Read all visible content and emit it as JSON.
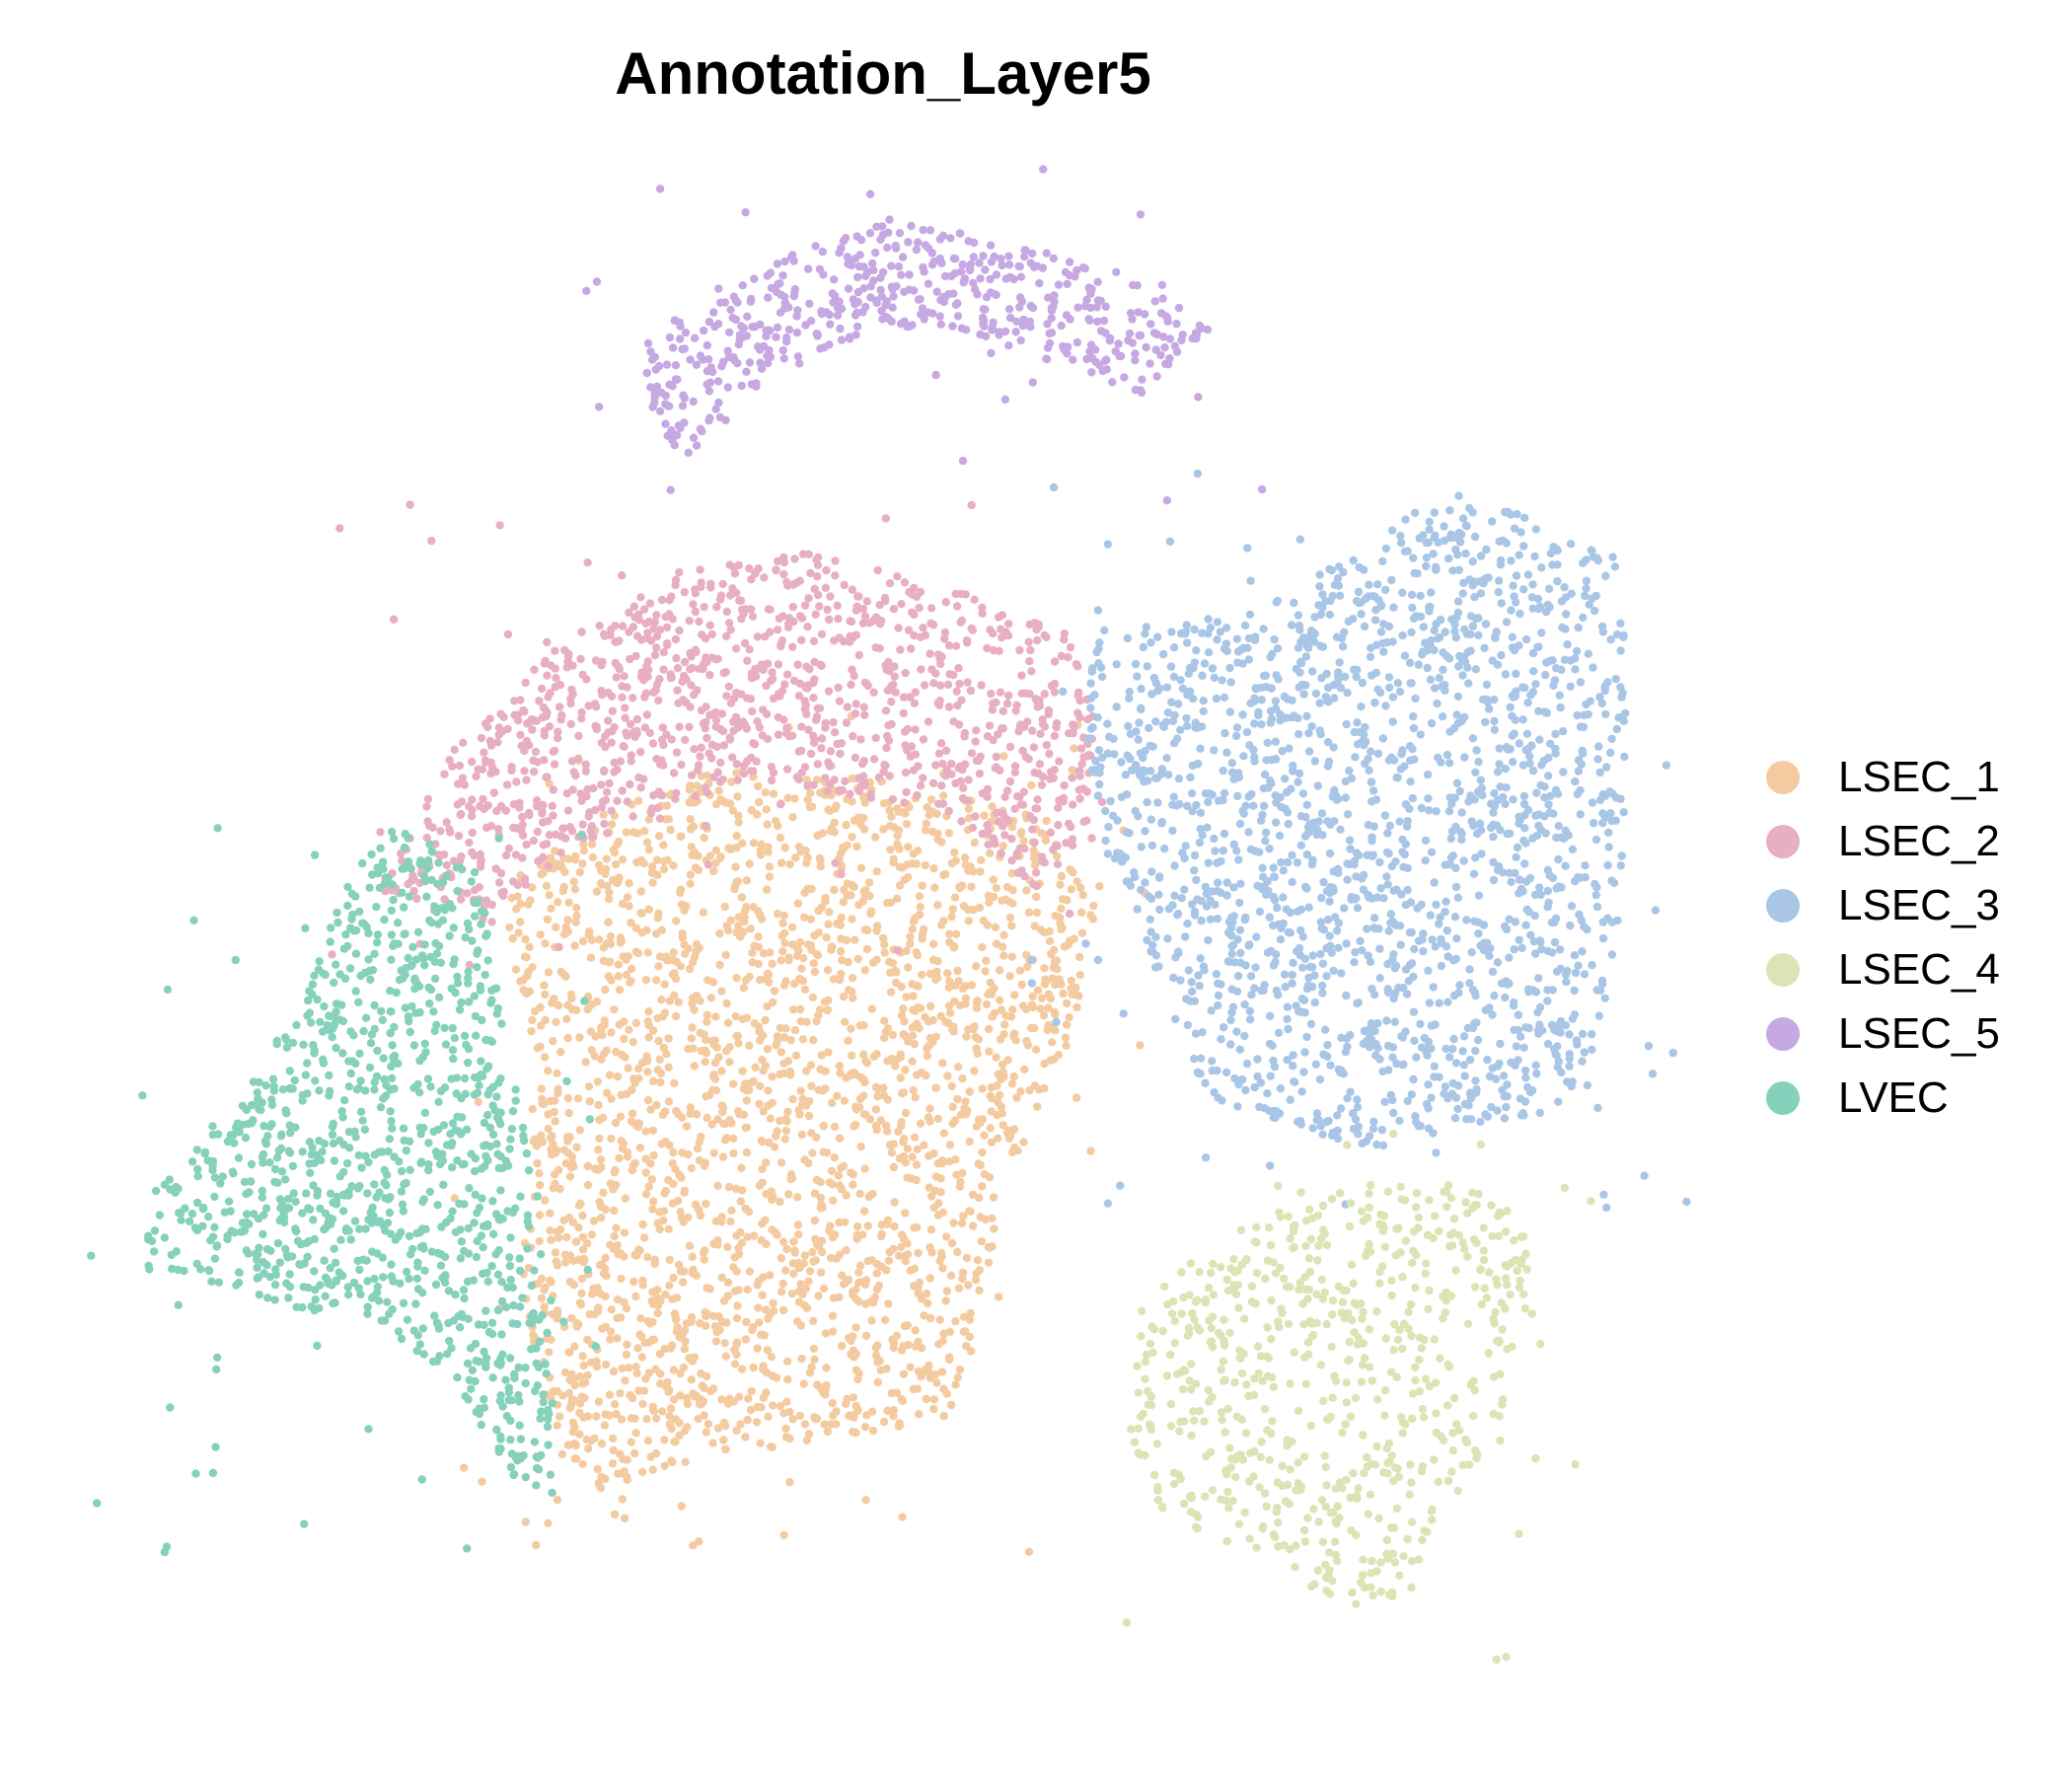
{
  "chart_data": {
    "type": "scatter",
    "title": "Annotation_Layer5",
    "xlabel": "",
    "ylabel": "",
    "axes_visible": false,
    "grid": false,
    "legend_placement": "right",
    "series": [
      {
        "name": "LSEC_1",
        "color": "#F4CBA0"
      },
      {
        "name": "LSEC_2",
        "color": "#E8AFC3"
      },
      {
        "name": "LSEC_3",
        "color": "#A9C6E6"
      },
      {
        "name": "LSEC_4",
        "color": "#DCE3B4"
      },
      {
        "name": "LSEC_5",
        "color": "#C6A8E2"
      },
      {
        "name": "LVEC",
        "color": "#86D1BB"
      }
    ]
  }
}
